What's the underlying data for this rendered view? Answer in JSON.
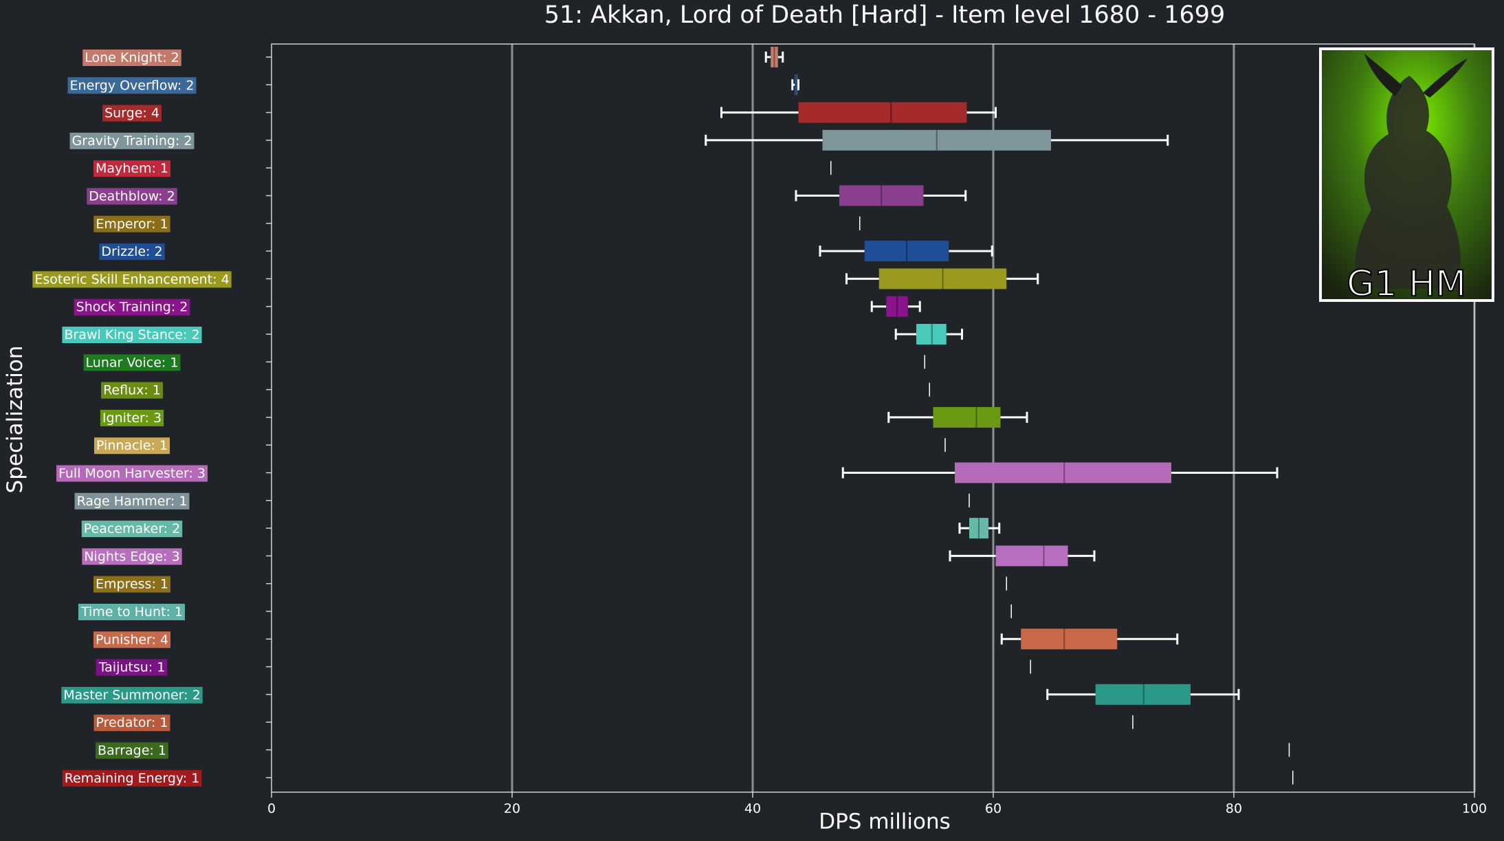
{
  "chart_data": {
    "type": "box",
    "title": "51: Akkan, Lord of Death [Hard] - Item level 1680 - 1699",
    "xlabel": "DPS millions",
    "ylabel": "Specialization",
    "xlim": [
      0,
      100
    ],
    "xticks": [
      "0",
      "20",
      "40",
      "60",
      "80",
      "100"
    ],
    "grid": "vertical",
    "inset_text": "G1 HM",
    "series": [
      {
        "label": "Lone Knight: 2",
        "color": "#c47a6a",
        "whisker_low": 41.1,
        "q1": 41.5,
        "median": 41.8,
        "q3": 42.1,
        "whisker_high": 42.5
      },
      {
        "label": "Energy Overflow: 2",
        "color": "#3b6a9a",
        "whisker_low": 43.3,
        "q1": 43.5,
        "median": 43.6,
        "q3": 43.7,
        "whisker_high": 43.8
      },
      {
        "label": "Surge: 4",
        "color": "#a52a2a",
        "whisker_low": 37.4,
        "q1": 43.8,
        "median": 51.5,
        "q3": 57.8,
        "whisker_high": 60.2
      },
      {
        "label": "Gravity Training: 2",
        "color": "#7f959c",
        "whisker_low": 36.1,
        "q1": 45.8,
        "median": 55.3,
        "q3": 64.8,
        "whisker_high": 74.5
      },
      {
        "label": "Mayhem: 1",
        "color": "#c0283c",
        "whisker_low": 46.5,
        "q1": 46.5,
        "median": 46.5,
        "q3": 46.5,
        "whisker_high": 46.5
      },
      {
        "label": "Deathblow: 2",
        "color": "#8a3f8e",
        "whisker_low": 43.6,
        "q1": 47.2,
        "median": 50.7,
        "q3": 54.2,
        "whisker_high": 57.7
      },
      {
        "label": "Emperor: 1",
        "color": "#8a6e1a",
        "whisker_low": 48.9,
        "q1": 48.9,
        "median": 48.9,
        "q3": 48.9,
        "whisker_high": 48.9
      },
      {
        "label": "Drizzle: 2",
        "color": "#1f4e96",
        "whisker_low": 45.6,
        "q1": 49.3,
        "median": 52.8,
        "q3": 56.3,
        "whisker_high": 59.9
      },
      {
        "label": "Esoteric Skill Enhancement: 4",
        "color": "#9a9a1e",
        "whisker_low": 47.8,
        "q1": 50.5,
        "median": 55.8,
        "q3": 61.1,
        "whisker_high": 63.7
      },
      {
        "label": "Shock Training: 2",
        "color": "#8b138b",
        "whisker_low": 49.9,
        "q1": 51.1,
        "median": 52.0,
        "q3": 52.9,
        "whisker_high": 53.9
      },
      {
        "label": "Brawl King Stance: 2",
        "color": "#48c9b9",
        "whisker_low": 51.9,
        "q1": 53.6,
        "median": 54.9,
        "q3": 56.1,
        "whisker_high": 57.4
      },
      {
        "label": "Lunar Voice: 1",
        "color": "#1e7a1e",
        "whisker_low": 54.3,
        "q1": 54.3,
        "median": 54.3,
        "q3": 54.3,
        "whisker_high": 54.3
      },
      {
        "label": "Reflux: 1",
        "color": "#6b8c12",
        "whisker_low": 54.7,
        "q1": 54.7,
        "median": 54.7,
        "q3": 54.7,
        "whisker_high": 54.7
      },
      {
        "label": "Igniter: 3",
        "color": "#6a9a12",
        "whisker_low": 51.3,
        "q1": 55.0,
        "median": 58.6,
        "q3": 60.6,
        "whisker_high": 62.8
      },
      {
        "label": "Pinnacle: 1",
        "color": "#c9a857",
        "whisker_low": 56.0,
        "q1": 56.0,
        "median": 56.0,
        "q3": 56.0,
        "whisker_high": 56.0
      },
      {
        "label": "Full Moon Harvester: 3",
        "color": "#b569b9",
        "whisker_low": 47.5,
        "q1": 56.8,
        "median": 65.9,
        "q3": 74.8,
        "whisker_high": 83.6
      },
      {
        "label": "Rage Hammer: 1",
        "color": "#7f929a",
        "whisker_low": 58.0,
        "q1": 58.0,
        "median": 58.0,
        "q3": 58.0,
        "whisker_high": 58.0
      },
      {
        "label": "Peacemaker: 2",
        "color": "#66b8a8",
        "whisker_low": 57.2,
        "q1": 58.0,
        "median": 58.8,
        "q3": 59.6,
        "whisker_high": 60.5
      },
      {
        "label": "Nights Edge: 3",
        "color": "#b86ebe",
        "whisker_low": 56.4,
        "q1": 60.2,
        "median": 64.2,
        "q3": 66.2,
        "whisker_high": 68.4
      },
      {
        "label": "Empress: 1",
        "color": "#8a6e1a",
        "whisker_low": 61.1,
        "q1": 61.1,
        "median": 61.1,
        "q3": 61.1,
        "whisker_high": 61.1
      },
      {
        "label": "Time to Hunt: 1",
        "color": "#5fb0a6",
        "whisker_low": 61.5,
        "q1": 61.5,
        "median": 61.5,
        "q3": 61.5,
        "whisker_high": 61.5
      },
      {
        "label": "Punisher: 4",
        "color": "#c86a4a",
        "whisker_low": 60.7,
        "q1": 62.3,
        "median": 65.9,
        "q3": 70.3,
        "whisker_high": 75.3
      },
      {
        "label": "Taijutsu: 1",
        "color": "#7b1385",
        "whisker_low": 63.1,
        "q1": 63.1,
        "median": 63.1,
        "q3": 63.1,
        "whisker_high": 63.1
      },
      {
        "label": "Master Summoner: 2",
        "color": "#2a9988",
        "whisker_low": 64.5,
        "q1": 68.5,
        "median": 72.5,
        "q3": 76.4,
        "whisker_high": 80.4
      },
      {
        "label": "Predator: 1",
        "color": "#b85a3c",
        "whisker_low": 71.6,
        "q1": 71.6,
        "median": 71.6,
        "q3": 71.6,
        "whisker_high": 71.6
      },
      {
        "label": "Barrage: 1",
        "color": "#3a6a1e",
        "whisker_low": 84.6,
        "q1": 84.6,
        "median": 84.6,
        "q3": 84.6,
        "whisker_high": 84.6
      },
      {
        "label": "Remaining Energy: 1",
        "color": "#a01a1e",
        "whisker_low": 84.9,
        "q1": 84.9,
        "median": 84.9,
        "q3": 84.9,
        "whisker_high": 84.9
      }
    ]
  }
}
